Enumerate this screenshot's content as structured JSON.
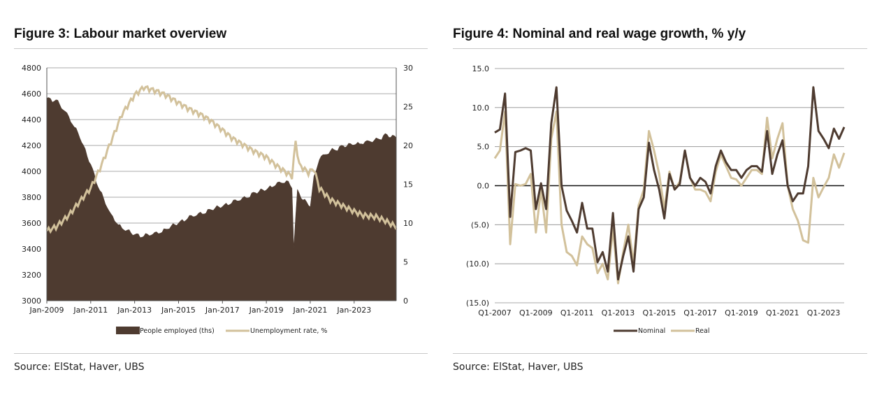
{
  "figures": [
    {
      "title": "Figure 3: Labour market overview",
      "source": "Source: ElStat, Haver, UBS"
    },
    {
      "title": "Figure 4: Nominal and real wage growth, % y/y",
      "source": "Source: ElStat, Haver, UBS"
    }
  ],
  "colors": {
    "dark": "#4e3b30",
    "light": "#d2c19b",
    "grid": "#8c8c8c",
    "zero": "#111111"
  },
  "chart_data": [
    {
      "type": "area",
      "x_ticks": [
        "Jan-2009",
        "Jan-2011",
        "Jan-2013",
        "Jan-2015",
        "Jan-2017",
        "Jan-2019",
        "Jan-2021",
        "Jan-2023"
      ],
      "x_range": [
        "Jan-2009",
        "Dec-2024"
      ],
      "ylim_left": [
        3000,
        4800
      ],
      "yticks_left": [
        3000,
        3200,
        3400,
        3600,
        3800,
        4000,
        4200,
        4400,
        4600,
        4800
      ],
      "ylim_right": [
        0,
        30
      ],
      "yticks_right": [
        0,
        5,
        10,
        15,
        20,
        25,
        30
      ],
      "grid": true,
      "legend_position": "bottom-center",
      "series": [
        {
          "name": "People employed (ths)",
          "type": "area",
          "axis": "left",
          "color": "#4e3b30",
          "points": [
            [
              "2009-01",
              4560
            ],
            [
              "2009-06",
              4550
            ],
            [
              "2009-12",
              4440
            ],
            [
              "2010-06",
              4300
            ],
            [
              "2011-01",
              4050
            ],
            [
              "2011-06",
              3850
            ],
            [
              "2011-12",
              3660
            ],
            [
              "2012-06",
              3560
            ],
            [
              "2013-01",
              3510
            ],
            [
              "2013-06",
              3500
            ],
            [
              "2014-01",
              3520
            ],
            [
              "2014-06",
              3550
            ],
            [
              "2015-01",
              3600
            ],
            [
              "2015-06",
              3640
            ],
            [
              "2016-01",
              3670
            ],
            [
              "2016-06",
              3700
            ],
            [
              "2017-01",
              3730
            ],
            [
              "2017-06",
              3760
            ],
            [
              "2018-01",
              3790
            ],
            [
              "2018-06",
              3830
            ],
            [
              "2019-01",
              3860
            ],
            [
              "2019-06",
              3900
            ],
            [
              "2019-12",
              3920
            ],
            [
              "2020-03",
              3880
            ],
            [
              "2020-04",
              3420
            ],
            [
              "2020-06",
              3850
            ],
            [
              "2020-09",
              3780
            ],
            [
              "2021-01",
              3730
            ],
            [
              "2021-03",
              3950
            ],
            [
              "2021-06",
              4100
            ],
            [
              "2022-01",
              4160
            ],
            [
              "2022-06",
              4190
            ],
            [
              "2023-01",
              4210
            ],
            [
              "2023-06",
              4220
            ],
            [
              "2024-01",
              4240
            ],
            [
              "2024-06",
              4280
            ],
            [
              "2024-12",
              4260
            ]
          ]
        },
        {
          "name": "Unemployment rate, %",
          "type": "line",
          "axis": "right",
          "color": "#d2c19b",
          "points": [
            [
              "2009-01",
              9.0
            ],
            [
              "2009-06",
              9.5
            ],
            [
              "2010-01",
              11.0
            ],
            [
              "2010-06",
              12.5
            ],
            [
              "2011-01",
              14.5
            ],
            [
              "2011-06",
              17.0
            ],
            [
              "2012-01",
              21.0
            ],
            [
              "2012-06",
              24.0
            ],
            [
              "2013-01",
              26.5
            ],
            [
              "2013-06",
              27.5
            ],
            [
              "2014-01",
              27.0
            ],
            [
              "2014-06",
              26.5
            ],
            [
              "2015-01",
              25.5
            ],
            [
              "2015-06",
              24.8
            ],
            [
              "2016-01",
              24.0
            ],
            [
              "2016-06",
              23.3
            ],
            [
              "2017-01",
              22.0
            ],
            [
              "2017-06",
              21.0
            ],
            [
              "2018-01",
              20.0
            ],
            [
              "2018-06",
              19.3
            ],
            [
              "2019-01",
              18.5
            ],
            [
              "2019-06",
              17.5
            ],
            [
              "2019-12",
              16.5
            ],
            [
              "2020-03",
              16.0
            ],
            [
              "2020-05",
              20.5
            ],
            [
              "2020-07",
              17.5
            ],
            [
              "2020-12",
              16.5
            ],
            [
              "2021-03",
              17.0
            ],
            [
              "2021-06",
              14.5
            ],
            [
              "2021-12",
              13.0
            ],
            [
              "2022-06",
              12.3
            ],
            [
              "2023-01",
              11.5
            ],
            [
              "2023-06",
              11.0
            ],
            [
              "2024-01",
              10.8
            ],
            [
              "2024-06",
              10.3
            ],
            [
              "2024-12",
              9.5
            ]
          ]
        }
      ]
    },
    {
      "type": "line",
      "x_ticks": [
        "Q1-2007",
        "Q1-2009",
        "Q1-2011",
        "Q1-2013",
        "Q1-2015",
        "Q1-2017",
        "Q1-2019",
        "Q1-2021",
        "Q1-2023"
      ],
      "ylim": [
        -15,
        15
      ],
      "yticks": [
        -15,
        -10,
        -5,
        0,
        5,
        10,
        15
      ],
      "ytick_labels": [
        "(15.0)",
        "(10.0)",
        "(5.0)",
        "0.0",
        "5.0",
        "10.0",
        "15.0"
      ],
      "grid": true,
      "legend_position": "bottom-center",
      "series": [
        {
          "name": "Nominal",
          "color": "#4e3b30",
          "points": [
            [
              "Q1-2007",
              6.8
            ],
            [
              "Q2-2007",
              7.2
            ],
            [
              "Q3-2007",
              11.8
            ],
            [
              "Q4-2007",
              -4.0
            ],
            [
              "Q1-2008",
              4.3
            ],
            [
              "Q2-2008",
              4.5
            ],
            [
              "Q3-2008",
              4.8
            ],
            [
              "Q4-2008",
              4.5
            ],
            [
              "Q1-2009",
              -3.0
            ],
            [
              "Q2-2009",
              0.3
            ],
            [
              "Q3-2009",
              -3.0
            ],
            [
              "Q4-2009",
              8.0
            ],
            [
              "Q1-2010",
              12.6
            ],
            [
              "Q2-2010",
              0.0
            ],
            [
              "Q3-2010",
              -3.2
            ],
            [
              "Q4-2010",
              -4.5
            ],
            [
              "Q1-2011",
              -6.0
            ],
            [
              "Q2-2011",
              -2.2
            ],
            [
              "Q3-2011",
              -5.5
            ],
            [
              "Q4-2011",
              -5.5
            ],
            [
              "Q1-2012",
              -9.8
            ],
            [
              "Q2-2012",
              -8.5
            ],
            [
              "Q3-2012",
              -11.0
            ],
            [
              "Q4-2012",
              -3.5
            ],
            [
              "Q1-2013",
              -12.0
            ],
            [
              "Q2-2013",
              -9.0
            ],
            [
              "Q3-2013",
              -6.5
            ],
            [
              "Q4-2013",
              -11.0
            ],
            [
              "Q1-2014",
              -3.0
            ],
            [
              "Q2-2014",
              -1.5
            ],
            [
              "Q3-2014",
              5.5
            ],
            [
              "Q4-2014",
              2.0
            ],
            [
              "Q1-2015",
              -0.5
            ],
            [
              "Q2-2015",
              -4.2
            ],
            [
              "Q3-2015",
              1.5
            ],
            [
              "Q4-2015",
              -0.5
            ],
            [
              "Q1-2016",
              0.2
            ],
            [
              "Q2-2016",
              4.5
            ],
            [
              "Q3-2016",
              1.0
            ],
            [
              "Q4-2016",
              0.0
            ],
            [
              "Q1-2017",
              1.0
            ],
            [
              "Q2-2017",
              0.5
            ],
            [
              "Q3-2017",
              -1.0
            ],
            [
              "Q4-2017",
              2.5
            ],
            [
              "Q1-2018",
              4.5
            ],
            [
              "Q2-2018",
              3.0
            ],
            [
              "Q3-2018",
              2.0
            ],
            [
              "Q4-2018",
              2.0
            ],
            [
              "Q1-2019",
              1.0
            ],
            [
              "Q2-2019",
              2.0
            ],
            [
              "Q3-2019",
              2.5
            ],
            [
              "Q4-2019",
              2.5
            ],
            [
              "Q1-2020",
              1.8
            ],
            [
              "Q2-2020",
              7.0
            ],
            [
              "Q3-2020",
              1.5
            ],
            [
              "Q4-2020",
              4.0
            ],
            [
              "Q1-2021",
              5.8
            ],
            [
              "Q2-2021",
              0.0
            ],
            [
              "Q3-2021",
              -2.0
            ],
            [
              "Q4-2021",
              -1.0
            ],
            [
              "Q1-2022",
              -1.0
            ],
            [
              "Q2-2022",
              2.5
            ],
            [
              "Q3-2022",
              12.6
            ],
            [
              "Q4-2022",
              7.0
            ],
            [
              "Q1-2023",
              6.0
            ],
            [
              "Q2-2023",
              4.8
            ],
            [
              "Q3-2023",
              7.3
            ],
            [
              "Q4-2023",
              6.0
            ],
            [
              "Q1-2024",
              7.5
            ]
          ]
        },
        {
          "name": "Real",
          "color": "#d2c19b",
          "points": [
            [
              "Q1-2007",
              3.5
            ],
            [
              "Q2-2007",
              4.5
            ],
            [
              "Q3-2007",
              9.5
            ],
            [
              "Q4-2007",
              -7.5
            ],
            [
              "Q1-2008",
              0.2
            ],
            [
              "Q2-2008",
              0.0
            ],
            [
              "Q3-2008",
              0.2
            ],
            [
              "Q4-2008",
              1.5
            ],
            [
              "Q1-2009",
              -6.0
            ],
            [
              "Q2-2009",
              -0.5
            ],
            [
              "Q3-2009",
              -6.0
            ],
            [
              "Q4-2009",
              6.0
            ],
            [
              "Q1-2010",
              9.5
            ],
            [
              "Q2-2010",
              -5.0
            ],
            [
              "Q3-2010",
              -8.5
            ],
            [
              "Q4-2010",
              -9.0
            ],
            [
              "Q1-2011",
              -10.2
            ],
            [
              "Q2-2011",
              -6.5
            ],
            [
              "Q3-2011",
              -7.5
            ],
            [
              "Q4-2011",
              -8.0
            ],
            [
              "Q1-2012",
              -11.2
            ],
            [
              "Q2-2012",
              -10.0
            ],
            [
              "Q3-2012",
              -12.0
            ],
            [
              "Q4-2012",
              -5.5
            ],
            [
              "Q1-2013",
              -12.5
            ],
            [
              "Q2-2013",
              -8.5
            ],
            [
              "Q3-2013",
              -5.0
            ],
            [
              "Q4-2013",
              -10.0
            ],
            [
              "Q1-2014",
              -2.5
            ],
            [
              "Q2-2014",
              -0.5
            ],
            [
              "Q3-2014",
              7.0
            ],
            [
              "Q4-2014",
              4.5
            ],
            [
              "Q1-2015",
              1.5
            ],
            [
              "Q2-2015",
              -3.0
            ],
            [
              "Q3-2015",
              1.8
            ],
            [
              "Q4-2015",
              -0.5
            ],
            [
              "Q1-2016",
              0.5
            ],
            [
              "Q2-2016",
              4.5
            ],
            [
              "Q3-2016",
              1.0
            ],
            [
              "Q4-2016",
              -0.5
            ],
            [
              "Q1-2017",
              -0.5
            ],
            [
              "Q2-2017",
              -0.8
            ],
            [
              "Q3-2017",
              -2.0
            ],
            [
              "Q4-2017",
              1.8
            ],
            [
              "Q1-2018",
              4.0
            ],
            [
              "Q2-2018",
              2.5
            ],
            [
              "Q3-2018",
              1.0
            ],
            [
              "Q4-2018",
              0.8
            ],
            [
              "Q1-2019",
              0.0
            ],
            [
              "Q2-2019",
              1.0
            ],
            [
              "Q3-2019",
              2.0
            ],
            [
              "Q4-2019",
              2.0
            ],
            [
              "Q1-2020",
              1.5
            ],
            [
              "Q2-2020",
              8.7
            ],
            [
              "Q3-2020",
              3.5
            ],
            [
              "Q4-2020",
              6.0
            ],
            [
              "Q1-2021",
              8.0
            ],
            [
              "Q2-2021",
              0.0
            ],
            [
              "Q3-2021",
              -3.0
            ],
            [
              "Q4-2021",
              -4.5
            ],
            [
              "Q1-2022",
              -7.0
            ],
            [
              "Q2-2022",
              -7.3
            ],
            [
              "Q3-2022",
              1.0
            ],
            [
              "Q4-2022",
              -1.5
            ],
            [
              "Q1-2023",
              -0.2
            ],
            [
              "Q2-2023",
              1.0
            ],
            [
              "Q3-2023",
              4.0
            ],
            [
              "Q4-2023",
              2.3
            ],
            [
              "Q1-2024",
              4.2
            ]
          ]
        }
      ]
    }
  ]
}
